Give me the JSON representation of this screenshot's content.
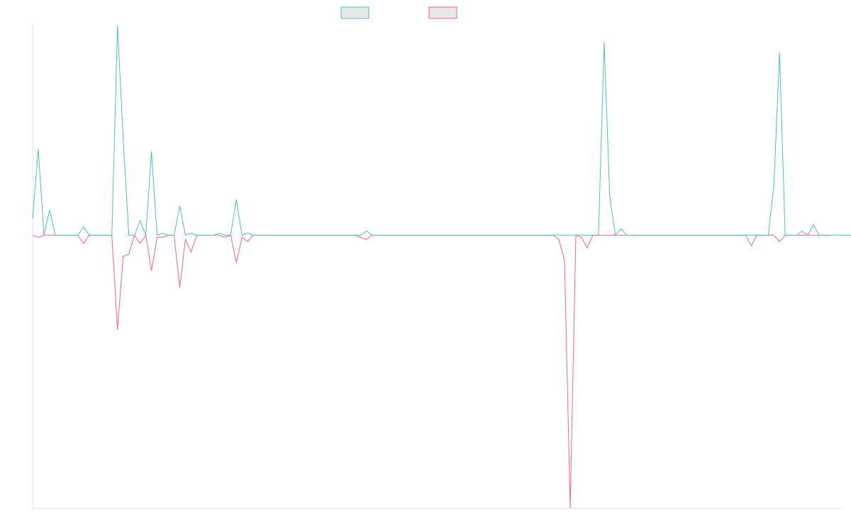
{
  "chart_data": {
    "type": "line",
    "title": "",
    "xlabel": "",
    "ylabel": "",
    "ylim": [
      -1.3,
      1.0
    ],
    "xlim": [
      0,
      143
    ],
    "grid": false,
    "legend_position": "top-center",
    "series": [
      {
        "name": "",
        "color": "#4bc0c0",
        "legend_fill": "#e8e8e8",
        "values": [
          0.08,
          0.41,
          0,
          0.12,
          0,
          0,
          0,
          0,
          0,
          0.04,
          0,
          0,
          0,
          0,
          0,
          1.0,
          0.46,
          0,
          0,
          0.07,
          0,
          0.4,
          0,
          0.01,
          0,
          0,
          0.14,
          0,
          0.01,
          0,
          0,
          0,
          0,
          0.01,
          0,
          0,
          0.17,
          0,
          0.01,
          0,
          0,
          0,
          0,
          0,
          0,
          0,
          0,
          0,
          0,
          0,
          0,
          0,
          0,
          0,
          0,
          0,
          0,
          0,
          0,
          0.02,
          0,
          0,
          0,
          0,
          0,
          0,
          0,
          0,
          0,
          0,
          0,
          0,
          0,
          0,
          0,
          0,
          0,
          0,
          0,
          0,
          0,
          0,
          0,
          0,
          0,
          0,
          0,
          0,
          0,
          0,
          0,
          0,
          0,
          0,
          0,
          0,
          0,
          0,
          0,
          0,
          0,
          0.92,
          0.18,
          0,
          0.03,
          0,
          0,
          0,
          0,
          0,
          0,
          0,
          0,
          0,
          0,
          0,
          0,
          0,
          0,
          0,
          0,
          0,
          0,
          0,
          0,
          0,
          0,
          0,
          0,
          0,
          0,
          0.24,
          0.87,
          0,
          0,
          0,
          0.02,
          0,
          0.05,
          0,
          0,
          0,
          0,
          0,
          0,
          0
        ]
      },
      {
        "name": "",
        "color": "#ff6384",
        "legend_fill": "#e8e8e8",
        "values": [
          0,
          -0.01,
          0,
          0,
          0,
          0,
          0,
          0,
          0,
          -0.04,
          0,
          0,
          0,
          0,
          0,
          -0.45,
          -0.1,
          -0.09,
          0,
          -0.04,
          0,
          -0.17,
          -0.01,
          -0.01,
          0,
          0,
          -0.25,
          -0.02,
          -0.08,
          0,
          0,
          0,
          0,
          0,
          -0.01,
          0,
          -0.13,
          -0.01,
          -0.03,
          0,
          0,
          0,
          0,
          0,
          0,
          0,
          0,
          0,
          0,
          0,
          0,
          0,
          0,
          0,
          0,
          0,
          0,
          0,
          -0.01,
          -0.02,
          0,
          0,
          0,
          0,
          0,
          0,
          0,
          0,
          0,
          0,
          0,
          0,
          0,
          0,
          0,
          0,
          0,
          0,
          0,
          0,
          0,
          0,
          0,
          0,
          0,
          0,
          0,
          0,
          0,
          0,
          0,
          0,
          0,
          -0.02,
          -0.12,
          -1.3,
          0,
          -0.01,
          -0.06,
          0,
          0,
          0,
          0,
          0,
          0,
          0,
          0,
          0,
          0,
          0,
          0,
          0,
          0,
          0,
          0,
          0,
          0,
          0,
          0,
          0,
          0,
          0,
          0,
          0,
          0,
          0,
          0,
          -0.05,
          0,
          0,
          0,
          0,
          -0.03,
          0,
          0,
          0,
          0,
          0,
          0,
          0,
          0,
          0
        ]
      }
    ]
  }
}
